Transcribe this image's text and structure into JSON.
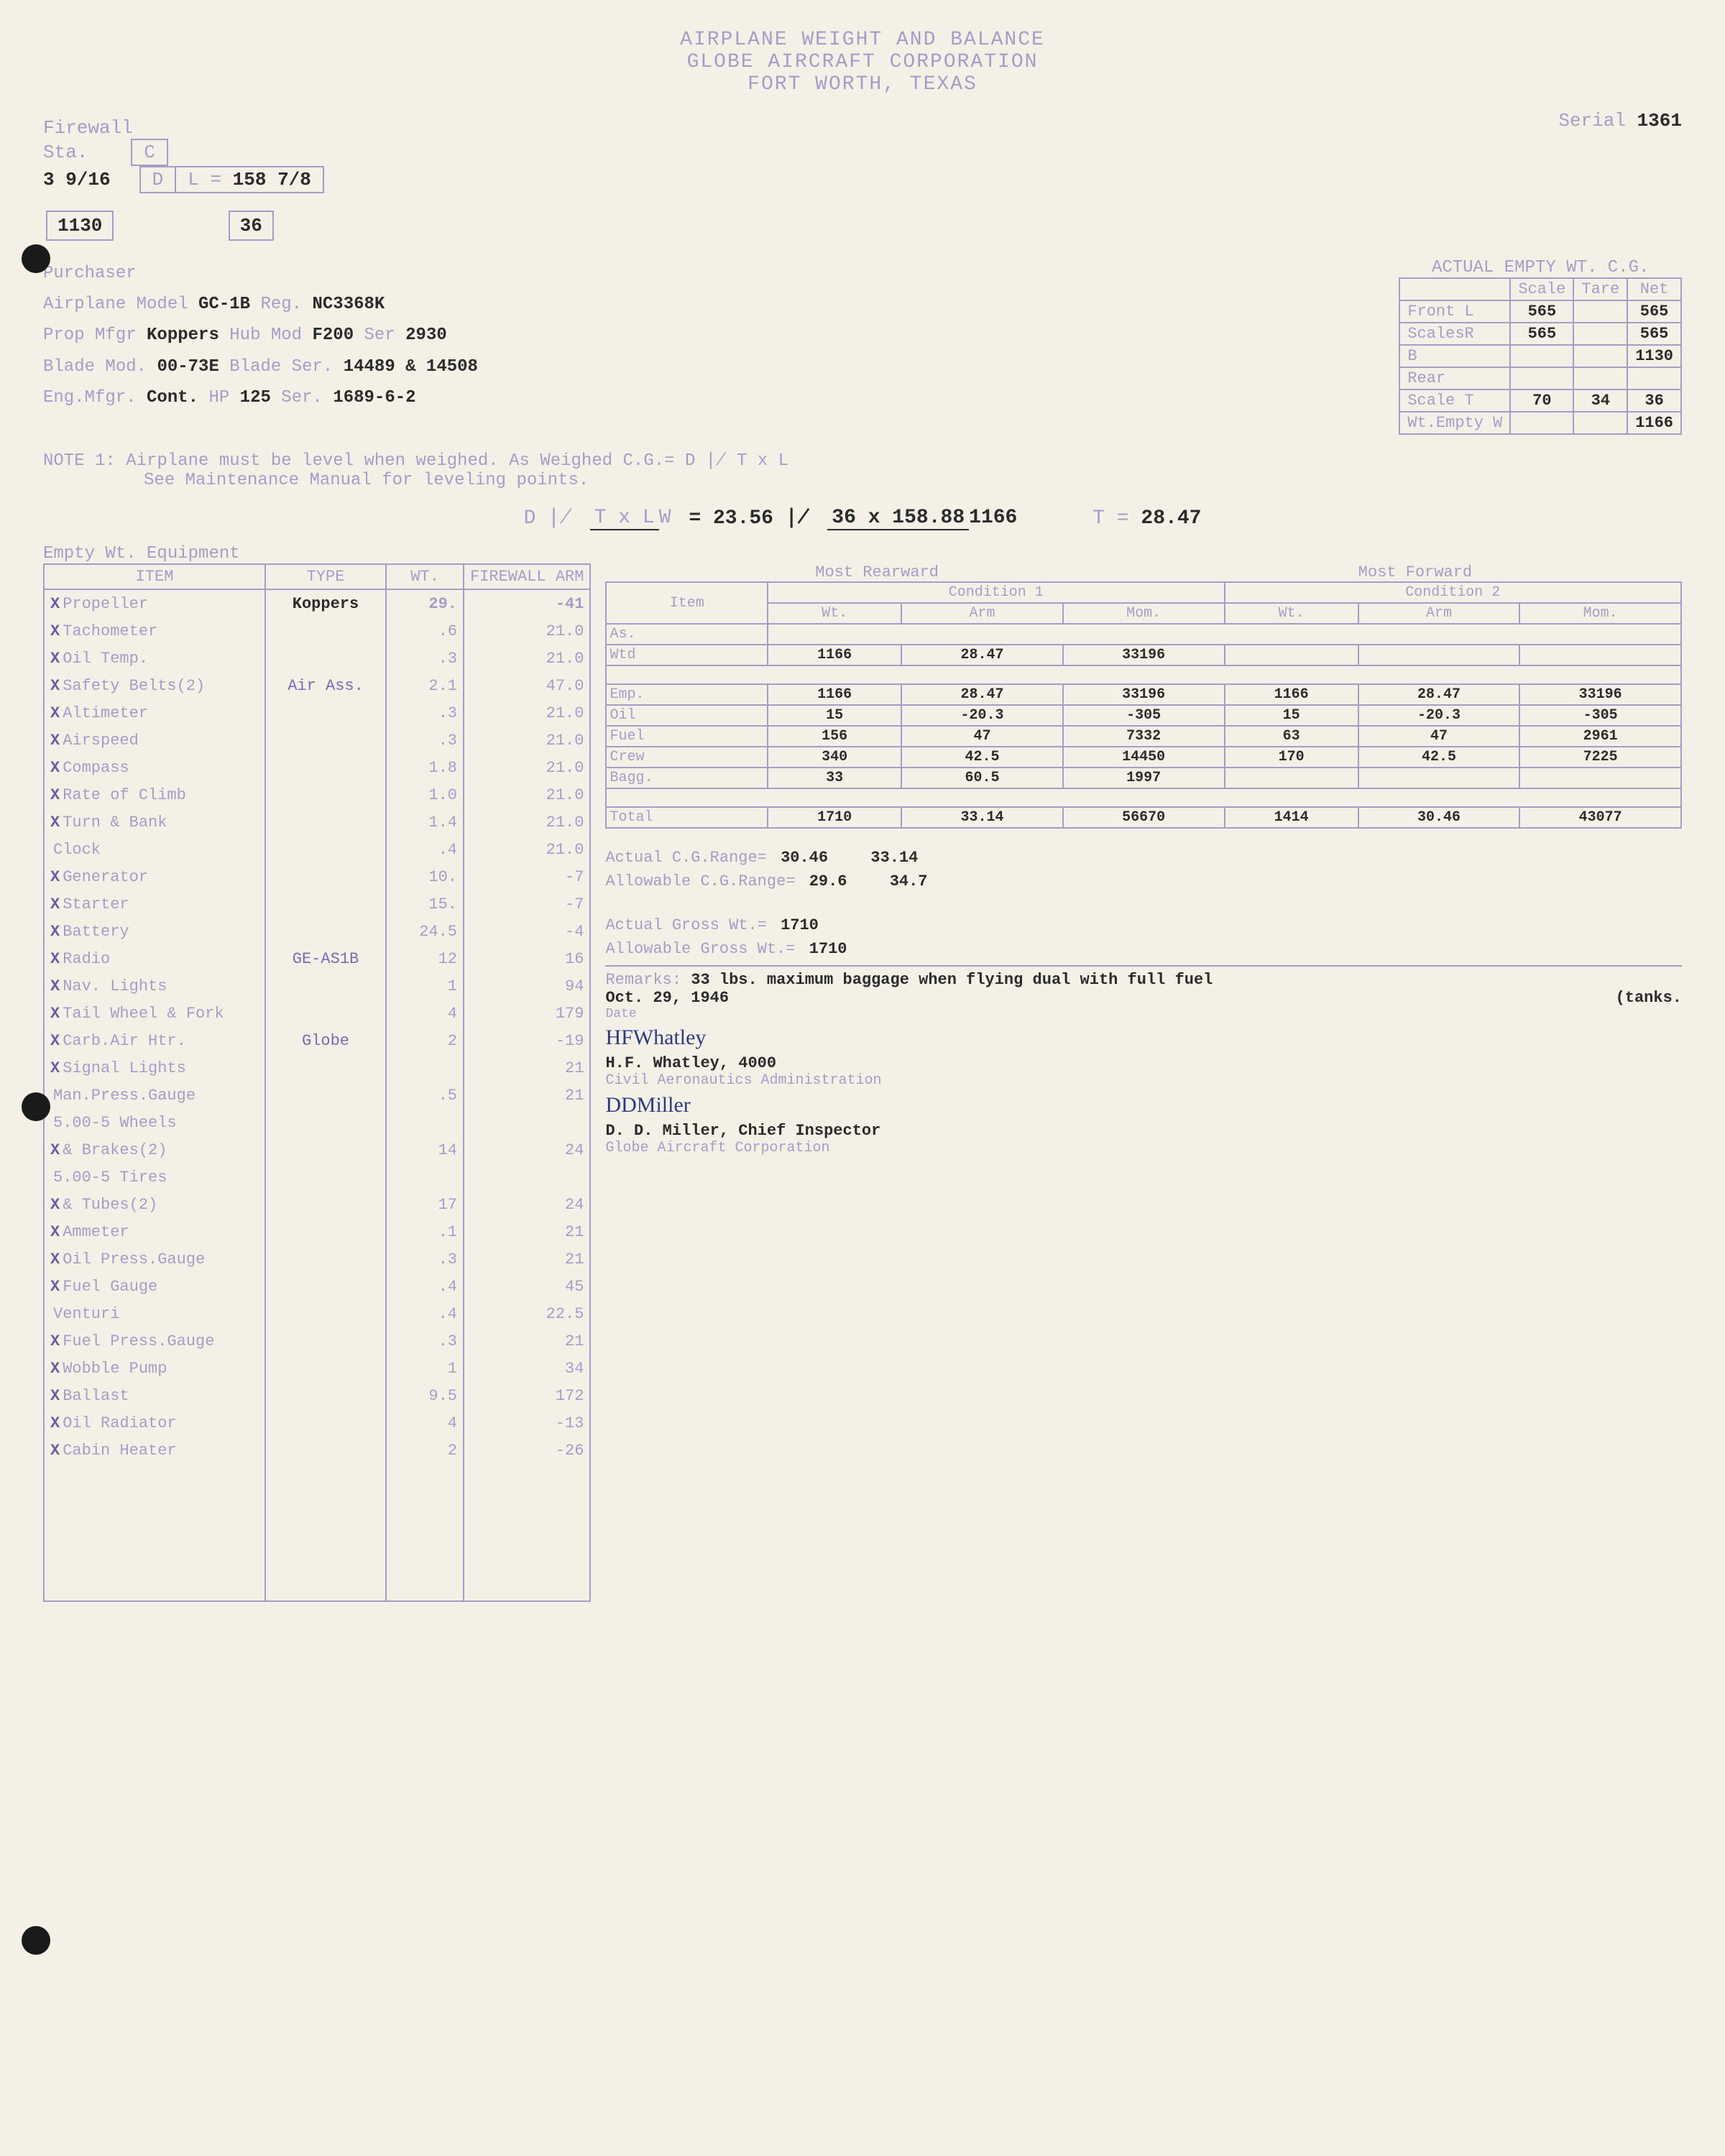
{
  "header": {
    "title1": "AIRPLANE WEIGHT AND BALANCE",
    "title2": "GLOBE AIRCRAFT CORPORATION",
    "title3": "FORT WORTH, TEXAS"
  },
  "serial": {
    "label": "Serial",
    "value": "1361"
  },
  "firewall": {
    "label": "Firewall",
    "sta_label": "Sta.",
    "col1": "3 9/16",
    "c": "C",
    "d": "D",
    "l_label": "L =",
    "l_val": "158 7/8",
    "box1": "1130",
    "box2": "36"
  },
  "purchaser": {
    "title": "Purchaser",
    "lines": [
      {
        "l": "Airplane Model",
        "v1": "GC-1B",
        "l2": "Reg.",
        "v2": "NC3368K"
      },
      {
        "l": "Prop Mfgr",
        "v1": "Koppers",
        "l2": "Hub Mod",
        "v2": "F200",
        "l3": "Ser",
        "v3": "2930"
      },
      {
        "l": "Blade Mod.",
        "v1": "00-73E",
        "l2": "Blade Ser.",
        "v2": "14489 & 14508"
      },
      {
        "l": "Eng.Mfgr.",
        "v1": "Cont.",
        "l2": "HP",
        "v2": "125",
        "l3": "Ser.",
        "v3": "1689-6-2"
      }
    ]
  },
  "actual_empty": {
    "title": "ACTUAL EMPTY WT. C.G.",
    "cols": [
      "",
      "Scale",
      "Tare",
      "Net"
    ],
    "rows": [
      [
        "Front L",
        "565",
        "",
        "565"
      ],
      [
        "ScalesR",
        "565",
        "",
        "565"
      ],
      [
        "B",
        "",
        "",
        "1130"
      ],
      [
        "Rear",
        "",
        "",
        ""
      ],
      [
        "Scale T",
        "70",
        "34",
        "36"
      ],
      [
        "Wt.Empty W",
        "",
        "",
        "1166"
      ]
    ]
  },
  "note1": "NOTE 1:  Airplane must be level when weighed.   As Weighed C.G.= D ∤  T x L",
  "note1b": "See Maintenance Manual for leveling points.",
  "note1c": "W",
  "formula": {
    "lhs": "D ∤",
    "frac1_top": "T x L",
    "frac1_bot": "W",
    "eq1": "= 23.56 ∤",
    "frac2_top": "36 x 158.88",
    "frac2_bot": "1166",
    "result_label": "T =",
    "result": "28.47"
  },
  "equip_header": "Empty Wt. Equipment",
  "equip_cols": [
    "ITEM",
    "TYPE",
    "WT.",
    "FIREWALL ARM"
  ],
  "equip": [
    {
      "x": "X",
      "item": "Propeller",
      "type": "Koppers",
      "wt": "29.",
      "arm": "-41",
      "dark_type": true,
      "dark_wt": true,
      "dark_arm": true
    },
    {
      "x": "X",
      "item": "Tachometer",
      "type": "",
      "wt": ".6",
      "arm": "21.0"
    },
    {
      "x": "X",
      "item": "Oil Temp.",
      "type": "",
      "wt": ".3",
      "arm": "21.0"
    },
    {
      "x": "X",
      "item": "Safety Belts(2)",
      "type": "Air Ass.",
      "wt": "2.1",
      "arm": "47.0"
    },
    {
      "x": "X",
      "item": "Altimeter",
      "type": "",
      "wt": ".3",
      "arm": "21.0"
    },
    {
      "x": "X",
      "item": "Airspeed",
      "type": "",
      "wt": ".3",
      "arm": "21.0"
    },
    {
      "x": "X",
      "item": "Compass",
      "type": "",
      "wt": "1.8",
      "arm": "21.0"
    },
    {
      "x": "X",
      "item": "Rate of Climb",
      "type": "",
      "wt": "1.0",
      "arm": "21.0"
    },
    {
      "x": "X",
      "item": "Turn & Bank",
      "type": "",
      "wt": "1.4",
      "arm": "21.0"
    },
    {
      "x": "",
      "item": "Clock",
      "type": "",
      "wt": ".4",
      "arm": "21.0"
    },
    {
      "x": "X",
      "item": "Generator",
      "type": "",
      "wt": "10.",
      "arm": "-7"
    },
    {
      "x": "X",
      "item": "Starter",
      "type": "",
      "wt": "15.",
      "arm": "-7"
    },
    {
      "x": "X",
      "item": "Battery",
      "type": "",
      "wt": "24.5",
      "arm": "-4"
    },
    {
      "x": "X",
      "item": "Radio",
      "type": "GE-AS1B",
      "wt": "12",
      "arm": "16"
    },
    {
      "x": "X",
      "item": "Nav. Lights",
      "type": "",
      "wt": "1",
      "arm": "94"
    },
    {
      "x": "X",
      "item": "Tail Wheel & Fork",
      "type": "",
      "wt": "4",
      "arm": "179"
    },
    {
      "x": "X",
      "item": "Carb.Air Htr.",
      "type": "Globe",
      "wt": "2",
      "arm": "-19"
    },
    {
      "x": "X",
      "item": "Signal Lights",
      "type": "",
      "wt": "",
      "arm": "21"
    },
    {
      "x": "",
      "item": "Man.Press.Gauge",
      "type": "",
      "wt": ".5",
      "arm": "21"
    },
    {
      "x": "",
      "item": "5.00-5 Wheels",
      "type": "",
      "wt": "",
      "arm": ""
    },
    {
      "x": "X",
      "item": "& Brakes(2)",
      "type": "",
      "wt": "14",
      "arm": "24"
    },
    {
      "x": "",
      "item": "5.00-5 Tires",
      "type": "",
      "wt": "",
      "arm": ""
    },
    {
      "x": "X",
      "item": "& Tubes(2)",
      "type": "",
      "wt": "17",
      "arm": "24"
    },
    {
      "x": "X",
      "item": "Ammeter",
      "type": "",
      "wt": ".1",
      "arm": "21"
    },
    {
      "x": "X",
      "item": "Oil Press.Gauge",
      "type": "",
      "wt": ".3",
      "arm": "21"
    },
    {
      "x": "X",
      "item": "Fuel Gauge",
      "type": "",
      "wt": ".4",
      "arm": "45"
    },
    {
      "x": "",
      "item": "Venturi",
      "type": "",
      "wt": ".4",
      "arm": "22.5"
    },
    {
      "x": "X",
      "item": "Fuel Press.Gauge",
      "type": "",
      "wt": ".3",
      "arm": "21"
    },
    {
      "x": "X",
      "item": "Wobble Pump",
      "type": "",
      "wt": "1",
      "arm": "34"
    },
    {
      "x": "X",
      "item": "Ballast",
      "type": "",
      "wt": "9.5",
      "arm": "172"
    },
    {
      "x": "X",
      "item": "Oil Radiator",
      "type": "",
      "wt": "4",
      "arm": "-13"
    },
    {
      "x": "X",
      "item": "Cabin Heater",
      "type": "",
      "wt": "2",
      "arm": "-26"
    },
    {
      "x": "",
      "item": "",
      "type": "",
      "wt": "",
      "arm": ""
    },
    {
      "x": "",
      "item": "",
      "type": "",
      "wt": "",
      "arm": ""
    },
    {
      "x": "",
      "item": "",
      "type": "",
      "wt": "",
      "arm": ""
    },
    {
      "x": "",
      "item": "",
      "type": "",
      "wt": "",
      "arm": ""
    },
    {
      "x": "",
      "item": "",
      "type": "",
      "wt": "",
      "arm": ""
    }
  ],
  "cond": {
    "header1": "Most Rearward",
    "header2": "Most Forward",
    "cols": [
      "Item",
      "Wt.",
      "Arm",
      "Mom.",
      "Wt.",
      "Arm",
      "Mom."
    ],
    "cond_labels": [
      "Condition 1",
      "Condition 2"
    ],
    "as_label": "As.",
    "wtd": [
      "Wtd",
      "1166",
      "28.47",
      "33196",
      "",
      "",
      ""
    ],
    "rows": [
      [
        "Emp.",
        "1166",
        "28.47",
        "33196",
        "1166",
        "28.47",
        "33196"
      ],
      [
        "Oil",
        "15",
        "-20.3",
        "-305",
        "15",
        "-20.3",
        "-305"
      ],
      [
        "Fuel",
        "156",
        "47",
        "7332",
        "63",
        "47",
        "2961"
      ],
      [
        "Crew",
        "340",
        "42.5",
        "14450",
        "170",
        "42.5",
        "7225"
      ],
      [
        "Bagg.",
        "33",
        "60.5",
        "1997",
        "",
        "",
        ""
      ]
    ],
    "total": [
      "Total",
      "1710",
      "33.14",
      "56670",
      "1414",
      "30.46",
      "43077"
    ]
  },
  "summary": {
    "actual_cg": {
      "label": "Actual C.G.Range=",
      "v1": "30.46",
      "v2": "33.14"
    },
    "allow_cg": {
      "label": "Allowable C.G.Range=",
      "v1": "29.6",
      "v2": "34.7"
    },
    "actual_gross": {
      "label": "Actual Gross Wt.=",
      "v": "1710"
    },
    "allow_gross": {
      "label": "Allowable Gross Wt.=",
      "v": "1710"
    },
    "remarks_label": "Remarks:",
    "remarks": "33 lbs. maximum baggage when flying dual with full fuel",
    "tanks": "(tanks.",
    "date": "Oct. 29, 1946",
    "date_label": "Date",
    "sig1": "H.F. Whatley, 4000",
    "sig1_org": "Civil Aeronautics Administration",
    "sig2": "D. D. Miller, Chief Inspector",
    "sig2_org": "Globe Aircraft Corporation"
  }
}
